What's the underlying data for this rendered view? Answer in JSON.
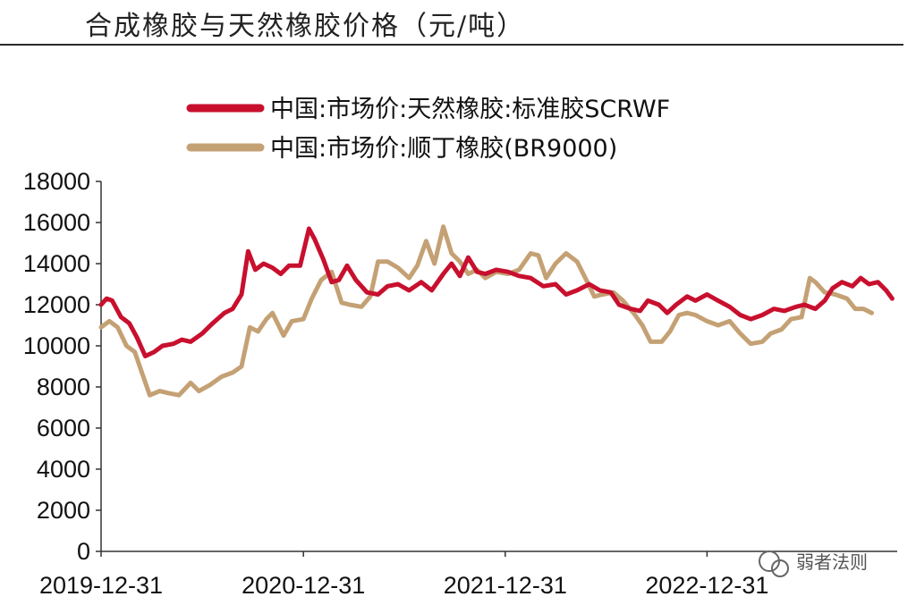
{
  "title": "合成橡胶与天然橡胶价格（元/吨）",
  "watermark": "弱者法则",
  "chart_data": {
    "type": "line",
    "x_tick_labels": [
      "2019-12-31",
      "2020-12-31",
      "2021-12-31",
      "2022-12-31"
    ],
    "x_range": [
      "2019-12-31",
      "2023-12-10"
    ],
    "ylim": [
      0,
      18000
    ],
    "y_ticks": [
      0,
      2000,
      4000,
      6000,
      8000,
      10000,
      12000,
      14000,
      16000,
      18000
    ],
    "grid": false,
    "legend_position": "top",
    "series": [
      {
        "name": "中国:市场价:天然橡胶:标准胶SCRWF",
        "color": "#c8102e",
        "points": [
          [
            "2019-12-31",
            12000
          ],
          [
            "2020-01-10",
            12300
          ],
          [
            "2020-01-20",
            12200
          ],
          [
            "2020-02-05",
            11400
          ],
          [
            "2020-02-20",
            11100
          ],
          [
            "2020-03-05",
            10400
          ],
          [
            "2020-03-20",
            9500
          ],
          [
            "2020-04-05",
            9700
          ],
          [
            "2020-04-20",
            10000
          ],
          [
            "2020-05-10",
            10100
          ],
          [
            "2020-05-25",
            10300
          ],
          [
            "2020-06-10",
            10200
          ],
          [
            "2020-07-01",
            10600
          ],
          [
            "2020-07-20",
            11100
          ],
          [
            "2020-08-10",
            11600
          ],
          [
            "2020-08-25",
            11800
          ],
          [
            "2020-09-10",
            12500
          ],
          [
            "2020-09-22",
            14600
          ],
          [
            "2020-10-05",
            13700
          ],
          [
            "2020-10-20",
            14000
          ],
          [
            "2020-11-05",
            13800
          ],
          [
            "2020-11-20",
            13500
          ],
          [
            "2020-12-05",
            13900
          ],
          [
            "2020-12-25",
            13900
          ],
          [
            "2021-01-10",
            15700
          ],
          [
            "2021-01-20",
            15200
          ],
          [
            "2021-02-05",
            14200
          ],
          [
            "2021-02-20",
            13100
          ],
          [
            "2021-03-05",
            13200
          ],
          [
            "2021-03-20",
            13900
          ],
          [
            "2021-04-05",
            13200
          ],
          [
            "2021-04-25",
            12600
          ],
          [
            "2021-05-15",
            12500
          ],
          [
            "2021-06-01",
            12900
          ],
          [
            "2021-06-20",
            13000
          ],
          [
            "2021-07-10",
            12700
          ],
          [
            "2021-08-01",
            13100
          ],
          [
            "2021-08-20",
            12700
          ],
          [
            "2021-09-10",
            13500
          ],
          [
            "2021-09-25",
            14000
          ],
          [
            "2021-10-10",
            13400
          ],
          [
            "2021-10-25",
            14300
          ],
          [
            "2021-11-10",
            13600
          ],
          [
            "2021-11-25",
            13500
          ],
          [
            "2021-12-15",
            13700
          ],
          [
            "2022-01-05",
            13600
          ],
          [
            "2022-01-25",
            13400
          ],
          [
            "2022-02-15",
            13300
          ],
          [
            "2022-03-10",
            12900
          ],
          [
            "2022-04-01",
            13000
          ],
          [
            "2022-04-20",
            12500
          ],
          [
            "2022-05-10",
            12700
          ],
          [
            "2022-06-01",
            13000
          ],
          [
            "2022-06-20",
            12700
          ],
          [
            "2022-07-10",
            12600
          ],
          [
            "2022-07-25",
            12000
          ],
          [
            "2022-08-15",
            11800
          ],
          [
            "2022-09-01",
            11700
          ],
          [
            "2022-09-15",
            12200
          ],
          [
            "2022-10-05",
            12000
          ],
          [
            "2022-10-20",
            11600
          ],
          [
            "2022-11-05",
            12000
          ],
          [
            "2022-11-25",
            12400
          ],
          [
            "2022-12-10",
            12200
          ],
          [
            "2022-12-31",
            12500
          ],
          [
            "2023-01-20",
            12200
          ],
          [
            "2023-02-10",
            11900
          ],
          [
            "2023-03-01",
            11500
          ],
          [
            "2023-03-20",
            11300
          ],
          [
            "2023-04-10",
            11500
          ],
          [
            "2023-05-01",
            11800
          ],
          [
            "2023-05-20",
            11700
          ],
          [
            "2023-06-10",
            11900
          ],
          [
            "2023-06-25",
            12000
          ],
          [
            "2023-07-15",
            11800
          ],
          [
            "2023-08-01",
            12200
          ],
          [
            "2023-08-15",
            12800
          ],
          [
            "2023-09-01",
            13100
          ],
          [
            "2023-09-20",
            12900
          ],
          [
            "2023-10-05",
            13300
          ],
          [
            "2023-10-20",
            13000
          ],
          [
            "2023-11-05",
            13100
          ],
          [
            "2023-11-20",
            12700
          ],
          [
            "2023-12-01",
            12300
          ]
        ]
      },
      {
        "name": "中国:市场价:顺丁橡胶(BR9000)",
        "color": "#c4a174",
        "points": [
          [
            "2019-12-31",
            10900
          ],
          [
            "2020-01-15",
            11200
          ],
          [
            "2020-01-30",
            10900
          ],
          [
            "2020-02-15",
            10000
          ],
          [
            "2020-03-01",
            9700
          ],
          [
            "2020-03-15",
            8600
          ],
          [
            "2020-03-28",
            7600
          ],
          [
            "2020-04-15",
            7800
          ],
          [
            "2020-05-01",
            7700
          ],
          [
            "2020-05-20",
            7600
          ],
          [
            "2020-06-10",
            8200
          ],
          [
            "2020-06-25",
            7800
          ],
          [
            "2020-07-15",
            8100
          ],
          [
            "2020-08-05",
            8500
          ],
          [
            "2020-08-25",
            8700
          ],
          [
            "2020-09-10",
            9000
          ],
          [
            "2020-09-25",
            10900
          ],
          [
            "2020-10-10",
            10700
          ],
          [
            "2020-10-25",
            11300
          ],
          [
            "2020-11-05",
            11600
          ],
          [
            "2020-11-25",
            10500
          ],
          [
            "2020-12-10",
            11200
          ],
          [
            "2020-12-31",
            11300
          ],
          [
            "2021-01-15",
            12300
          ],
          [
            "2021-02-01",
            13200
          ],
          [
            "2021-02-20",
            13600
          ],
          [
            "2021-03-10",
            12100
          ],
          [
            "2021-03-25",
            12000
          ],
          [
            "2021-04-15",
            11900
          ],
          [
            "2021-05-01",
            12400
          ],
          [
            "2021-05-15",
            14100
          ],
          [
            "2021-06-01",
            14100
          ],
          [
            "2021-06-20",
            13800
          ],
          [
            "2021-07-10",
            13300
          ],
          [
            "2021-07-25",
            13900
          ],
          [
            "2021-08-10",
            15100
          ],
          [
            "2021-08-25",
            14000
          ],
          [
            "2021-09-10",
            15800
          ],
          [
            "2021-09-25",
            14500
          ],
          [
            "2021-10-10",
            14100
          ],
          [
            "2021-10-25",
            13500
          ],
          [
            "2021-11-10",
            13700
          ],
          [
            "2021-11-25",
            13300
          ],
          [
            "2021-12-15",
            13600
          ],
          [
            "2022-01-05",
            13500
          ],
          [
            "2022-01-25",
            13700
          ],
          [
            "2022-02-15",
            14500
          ],
          [
            "2022-03-01",
            14400
          ],
          [
            "2022-03-15",
            13300
          ],
          [
            "2022-04-01",
            14000
          ],
          [
            "2022-04-20",
            14500
          ],
          [
            "2022-05-10",
            14100
          ],
          [
            "2022-05-25",
            13300
          ],
          [
            "2022-06-10",
            12400
          ],
          [
            "2022-06-25",
            12500
          ],
          [
            "2022-07-15",
            12600
          ],
          [
            "2022-08-01",
            12200
          ],
          [
            "2022-08-20",
            11600
          ],
          [
            "2022-09-05",
            11000
          ],
          [
            "2022-09-20",
            10200
          ],
          [
            "2022-10-10",
            10200
          ],
          [
            "2022-10-25",
            10700
          ],
          [
            "2022-11-10",
            11500
          ],
          [
            "2022-11-25",
            11600
          ],
          [
            "2022-12-10",
            11500
          ],
          [
            "2022-12-31",
            11200
          ],
          [
            "2023-01-20",
            11000
          ],
          [
            "2023-02-10",
            11200
          ],
          [
            "2023-03-01",
            10600
          ],
          [
            "2023-03-20",
            10100
          ],
          [
            "2023-04-10",
            10200
          ],
          [
            "2023-04-25",
            10600
          ],
          [
            "2023-05-15",
            10800
          ],
          [
            "2023-06-01",
            11300
          ],
          [
            "2023-06-20",
            11400
          ],
          [
            "2023-07-05",
            13300
          ],
          [
            "2023-07-15",
            13100
          ],
          [
            "2023-08-01",
            12600
          ],
          [
            "2023-08-20",
            12500
          ],
          [
            "2023-09-10",
            12300
          ],
          [
            "2023-09-25",
            11800
          ],
          [
            "2023-10-10",
            11800
          ],
          [
            "2023-10-25",
            11600
          ]
        ]
      }
    ]
  }
}
